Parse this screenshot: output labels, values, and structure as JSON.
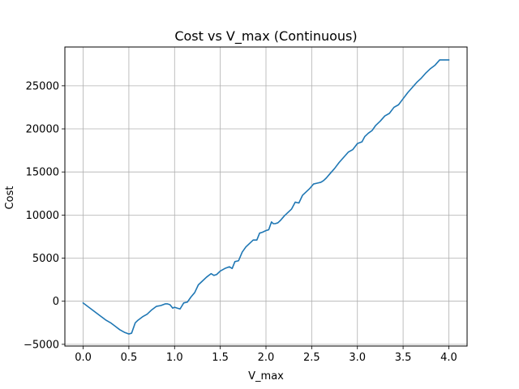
{
  "chart_data": {
    "type": "line",
    "title": "Cost vs V_max (Continuous)",
    "xlabel": "V_max",
    "ylabel": "Cost",
    "xlim": [
      -0.2,
      4.2
    ],
    "ylim": [
      -5200,
      29500
    ],
    "grid": true,
    "x_ticks": [
      0.0,
      0.5,
      1.0,
      1.5,
      2.0,
      2.5,
      3.0,
      3.5,
      4.0
    ],
    "x_tick_labels": [
      "0.0",
      "0.5",
      "1.0",
      "1.5",
      "2.0",
      "2.5",
      "3.0",
      "3.5",
      "4.0"
    ],
    "y_ticks": [
      -5000,
      0,
      5000,
      10000,
      15000,
      20000,
      25000
    ],
    "y_tick_labels": [
      "−5000",
      "0",
      "5000",
      "10000",
      "15000",
      "20000",
      "25000"
    ],
    "colors": {
      "line": "#1f77b4",
      "grid": "#b0b0b0"
    },
    "series": [
      {
        "x": [
          0.0,
          0.05,
          0.1,
          0.15,
          0.2,
          0.25,
          0.3,
          0.35,
          0.4,
          0.45,
          0.5,
          0.53,
          0.57,
          0.6,
          0.65,
          0.7,
          0.75,
          0.8,
          0.85,
          0.9,
          0.92,
          0.95,
          0.98,
          1.0,
          1.03,
          1.06,
          1.1,
          1.14,
          1.18,
          1.22,
          1.26,
          1.3,
          1.35,
          1.4,
          1.43,
          1.46,
          1.5,
          1.55,
          1.6,
          1.63,
          1.66,
          1.7,
          1.74,
          1.78,
          1.82,
          1.86,
          1.9,
          1.93,
          1.96,
          2.0,
          2.03,
          2.06,
          2.08,
          2.1,
          2.13,
          2.16,
          2.2,
          2.24,
          2.28,
          2.32,
          2.36,
          2.4,
          2.44,
          2.48,
          2.52,
          2.56,
          2.6,
          2.63,
          2.66,
          2.7,
          2.75,
          2.8,
          2.85,
          2.9,
          2.95,
          3.0,
          3.05,
          3.08,
          3.12,
          3.16,
          3.2,
          3.25,
          3.3,
          3.35,
          3.4,
          3.45,
          3.5,
          3.55,
          3.6,
          3.65,
          3.7,
          3.75,
          3.8,
          3.85,
          3.9,
          3.95,
          4.0
        ],
        "y": [
          -200,
          -600,
          -1000,
          -1400,
          -1800,
          -2200,
          -2500,
          -2900,
          -3300,
          -3600,
          -3800,
          -3700,
          -2500,
          -2200,
          -1800,
          -1500,
          -1000,
          -600,
          -500,
          -300,
          -300,
          -400,
          -800,
          -700,
          -800,
          -900,
          -200,
          -100,
          500,
          1000,
          1900,
          2300,
          2800,
          3200,
          3000,
          3100,
          3500,
          3800,
          4000,
          3800,
          4600,
          4700,
          5700,
          6300,
          6700,
          7100,
          7100,
          7900,
          8000,
          8200,
          8300,
          9200,
          9000,
          9000,
          9100,
          9400,
          9900,
          10300,
          10700,
          11500,
          11400,
          12300,
          12700,
          13100,
          13600,
          13700,
          13800,
          14000,
          14300,
          14800,
          15400,
          16100,
          16700,
          17300,
          17600,
          18300,
          18500,
          19100,
          19500,
          19800,
          20400,
          20900,
          21500,
          21800,
          22500,
          22800,
          23500,
          24200,
          24800,
          25400,
          25900,
          26500,
          27000,
          27400,
          28000,
          28000,
          28000
        ]
      }
    ]
  }
}
